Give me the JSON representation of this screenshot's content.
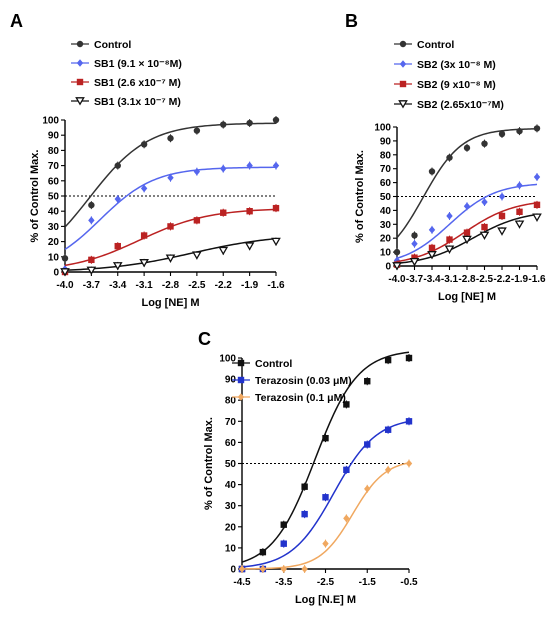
{
  "chart_data": [
    {
      "panel": "A",
      "type": "scatter",
      "xlabel": "Log [NE] M",
      "ylabel": "% of Control Max.",
      "xlim": [
        -4.0,
        -1.6
      ],
      "ylim": [
        0,
        100
      ],
      "xticks": [
        "-4.0",
        "-3.7",
        "-3.4",
        "-3.1",
        "-2.8",
        "-2.5",
        "-2.2",
        "-1.9",
        "-1.6"
      ],
      "yticks": [
        0,
        10,
        20,
        30,
        40,
        50,
        60,
        70,
        80,
        90,
        100
      ],
      "reference_line": 50,
      "legend_position": "top-left",
      "series": [
        {
          "name": "Control",
          "color": "#333333",
          "marker": "circle",
          "points": [
            [
              -4.0,
              9
            ],
            [
              -3.7,
              44
            ],
            [
              -3.4,
              70
            ],
            [
              -3.1,
              84
            ],
            [
              -2.8,
              88
            ],
            [
              -2.5,
              93
            ],
            [
              -2.2,
              97
            ],
            [
              -1.9,
              98
            ],
            [
              -1.6,
              100
            ]
          ],
          "fit": {
            "bottom": 0,
            "top": 98,
            "logEC50": -3.72,
            "hill": 1.3
          }
        },
        {
          "name": "SB1 (9.1 × 10⁻⁸M)",
          "color": "#5566ee",
          "marker": "diamond",
          "points": [
            [
              -4.0,
              2
            ],
            [
              -3.7,
              34
            ],
            [
              -3.4,
              48
            ],
            [
              -3.1,
              55
            ],
            [
              -2.8,
              62
            ],
            [
              -2.5,
              66
            ],
            [
              -2.2,
              68
            ],
            [
              -1.9,
              70
            ],
            [
              -1.6,
              70
            ]
          ],
          "fit": {
            "bottom": 0,
            "top": 69,
            "logEC50": -3.6,
            "hill": 1.4
          }
        },
        {
          "name": "SB1 (2.6 x10⁻⁷ M)",
          "color": "#bb2222",
          "marker": "square",
          "points": [
            [
              -4.0,
              0
            ],
            [
              -3.7,
              8
            ],
            [
              -3.4,
              17
            ],
            [
              -3.1,
              24
            ],
            [
              -2.8,
              30
            ],
            [
              -2.5,
              34
            ],
            [
              -2.2,
              39
            ],
            [
              -1.9,
              40
            ],
            [
              -1.6,
              42
            ]
          ],
          "fit": {
            "bottom": 0,
            "top": 42,
            "logEC50": -3.15,
            "hill": 1.1
          }
        },
        {
          "name": "SB1 (3.1x 10⁻⁷ M)",
          "color": "#111111",
          "marker": "triangle-down",
          "points": [
            [
              -4.0,
              0
            ],
            [
              -3.7,
              1
            ],
            [
              -3.4,
              4
            ],
            [
              -3.1,
              6
            ],
            [
              -2.8,
              9
            ],
            [
              -2.5,
              11
            ],
            [
              -2.2,
              14
            ],
            [
              -1.9,
              17
            ],
            [
              -1.6,
              20
            ]
          ],
          "fit": {
            "bottom": 0,
            "top": 25,
            "logEC50": -2.55,
            "hill": 0.9
          }
        }
      ]
    },
    {
      "panel": "B",
      "type": "scatter",
      "xlabel": "Log [NE] M",
      "ylabel": "% of Control Max.",
      "xlim": [
        -4.0,
        -1.6
      ],
      "ylim": [
        0,
        100
      ],
      "xticks": [
        "-4.0",
        "-3.7",
        "-3.4",
        "-3.1",
        "-2.8",
        "-2.5",
        "-2.2",
        "-1.9",
        "-1.6"
      ],
      "yticks": [
        0,
        10,
        20,
        30,
        40,
        50,
        60,
        70,
        80,
        90,
        100
      ],
      "reference_line": 50,
      "legend_position": "top-left",
      "series": [
        {
          "name": "Control",
          "color": "#333333",
          "marker": "circle",
          "points": [
            [
              -4.0,
              10
            ],
            [
              -3.7,
              22
            ],
            [
              -3.4,
              68
            ],
            [
              -3.1,
              78
            ],
            [
              -2.8,
              85
            ],
            [
              -2.5,
              88
            ],
            [
              -2.2,
              95
            ],
            [
              -1.9,
              97
            ],
            [
              -1.6,
              99
            ]
          ],
          "fit": {
            "bottom": 0,
            "top": 99,
            "logEC50": -3.55,
            "hill": 1.3
          }
        },
        {
          "name": "SB2 (3x 10⁻⁸ M)",
          "color": "#5566ee",
          "marker": "diamond",
          "points": [
            [
              -4.0,
              4
            ],
            [
              -3.7,
              16
            ],
            [
              -3.4,
              26
            ],
            [
              -3.1,
              36
            ],
            [
              -2.8,
              43
            ],
            [
              -2.5,
              46
            ],
            [
              -2.2,
              50
            ],
            [
              -1.9,
              58
            ],
            [
              -1.6,
              64
            ]
          ],
          "fit": {
            "bottom": 0,
            "top": 60,
            "logEC50": -3.1,
            "hill": 1.1
          }
        },
        {
          "name": "SB2 (9 x10⁻⁸ M)",
          "color": "#bb2222",
          "marker": "square",
          "points": [
            [
              -4.0,
              1
            ],
            [
              -3.7,
              6
            ],
            [
              -3.4,
              13
            ],
            [
              -3.1,
              19
            ],
            [
              -2.8,
              24
            ],
            [
              -2.5,
              28
            ],
            [
              -2.2,
              36
            ],
            [
              -1.9,
              39
            ],
            [
              -1.6,
              44
            ]
          ],
          "fit": {
            "bottom": 0,
            "top": 48,
            "logEC50": -2.85,
            "hill": 1.0
          }
        },
        {
          "name": "SB2 (2.65x10⁻⁷M)",
          "color": "#111111",
          "marker": "triangle-down",
          "points": [
            [
              -4.0,
              0
            ],
            [
              -3.7,
              3
            ],
            [
              -3.4,
              8
            ],
            [
              -3.1,
              12
            ],
            [
              -2.8,
              19
            ],
            [
              -2.5,
              22
            ],
            [
              -2.2,
              25
            ],
            [
              -1.9,
              30
            ],
            [
              -1.6,
              35
            ]
          ],
          "fit": {
            "bottom": 0,
            "top": 40,
            "logEC50": -2.7,
            "hill": 1.0
          }
        }
      ]
    },
    {
      "panel": "C",
      "type": "scatter",
      "xlabel": "Log [N.E] M",
      "ylabel": "% of Control Max.",
      "xlim": [
        -4.5,
        -0.5
      ],
      "ylim": [
        0,
        100
      ],
      "xticks": [
        "-4.5",
        "-3.5",
        "-2.5",
        "-1.5",
        "-0.5"
      ],
      "yticks": [
        0,
        10,
        20,
        30,
        40,
        50,
        60,
        70,
        80,
        90,
        100
      ],
      "reference_line": 50,
      "legend_position": "top-left",
      "series": [
        {
          "name": "Control",
          "color": "#111111",
          "marker": "square",
          "points": [
            [
              -4.5,
              0
            ],
            [
              -4.0,
              8
            ],
            [
              -3.5,
              21
            ],
            [
              -3.0,
              39
            ],
            [
              -2.5,
              62
            ],
            [
              -2.0,
              78
            ],
            [
              -1.5,
              89
            ],
            [
              -1.0,
              99
            ],
            [
              -0.5,
              100
            ]
          ],
          "fit": {
            "bottom": 0,
            "top": 104,
            "logEC50": -2.75,
            "hill": 0.85
          }
        },
        {
          "name": "Terazosin (0.03 μM)",
          "color": "#2233cc",
          "marker": "square",
          "points": [
            [
              -4.5,
              0
            ],
            [
              -4.0,
              0
            ],
            [
              -3.5,
              12
            ],
            [
              -3.0,
              26
            ],
            [
              -2.5,
              34
            ],
            [
              -2.0,
              47
            ],
            [
              -1.5,
              59
            ],
            [
              -1.0,
              66
            ],
            [
              -0.5,
              70
            ]
          ],
          "fit": {
            "bottom": 0,
            "top": 72,
            "logEC50": -2.3,
            "hill": 0.85
          }
        },
        {
          "name": "Terazosin (0.1 μM)",
          "color": "#f0a860",
          "marker": "diamond",
          "points": [
            [
              -4.5,
              0
            ],
            [
              -4.0,
              0
            ],
            [
              -3.5,
              0
            ],
            [
              -3.0,
              0
            ],
            [
              -2.5,
              12
            ],
            [
              -2.0,
              24
            ],
            [
              -1.5,
              38
            ],
            [
              -1.0,
              47
            ],
            [
              -0.5,
              50
            ]
          ],
          "fit": {
            "bottom": 0,
            "top": 52,
            "logEC50": -1.85,
            "hill": 1.1
          }
        }
      ]
    }
  ]
}
